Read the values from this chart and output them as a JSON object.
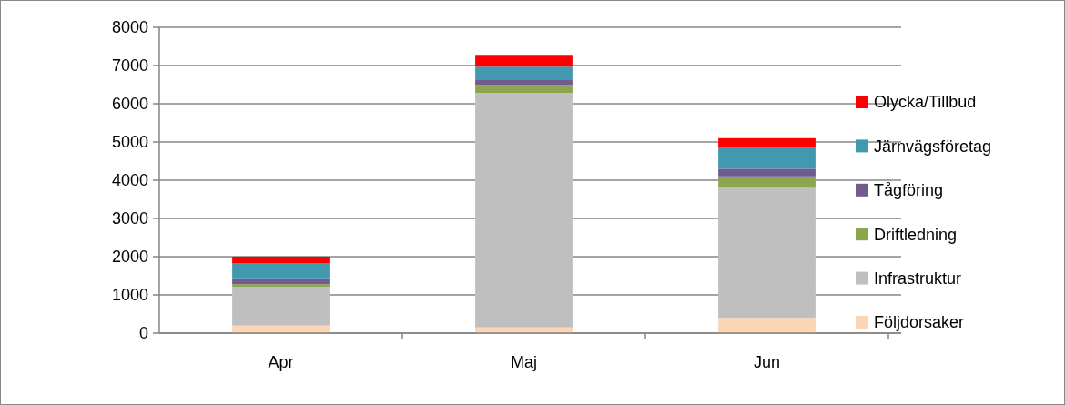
{
  "chart_data": {
    "type": "bar",
    "stacked": true,
    "categories": [
      "Apr",
      "Maj",
      "Jun"
    ],
    "series": [
      {
        "name": "Följdorsaker",
        "color": "#fcd5b4",
        "values": [
          200,
          150,
          400
        ]
      },
      {
        "name": "Infrastruktur",
        "color": "#bfbfbf",
        "values": [
          1010,
          6130,
          3400
        ]
      },
      {
        "name": "Driftledning",
        "color": "#8aa64e",
        "values": [
          70,
          210,
          300
        ]
      },
      {
        "name": "Tågföring",
        "color": "#725b8f",
        "values": [
          130,
          130,
          200
        ]
      },
      {
        "name": "Järnvägsföretag",
        "color": "#4198af",
        "values": [
          410,
          350,
          580
        ]
      },
      {
        "name": "Olycka/Tillbud",
        "color": "#ff0000",
        "values": [
          180,
          310,
          220
        ]
      }
    ],
    "ylim": [
      0,
      8000
    ],
    "yticks": [
      0,
      1000,
      2000,
      3000,
      4000,
      5000,
      6000,
      7000,
      8000
    ],
    "grid": "y",
    "legend": "right"
  }
}
